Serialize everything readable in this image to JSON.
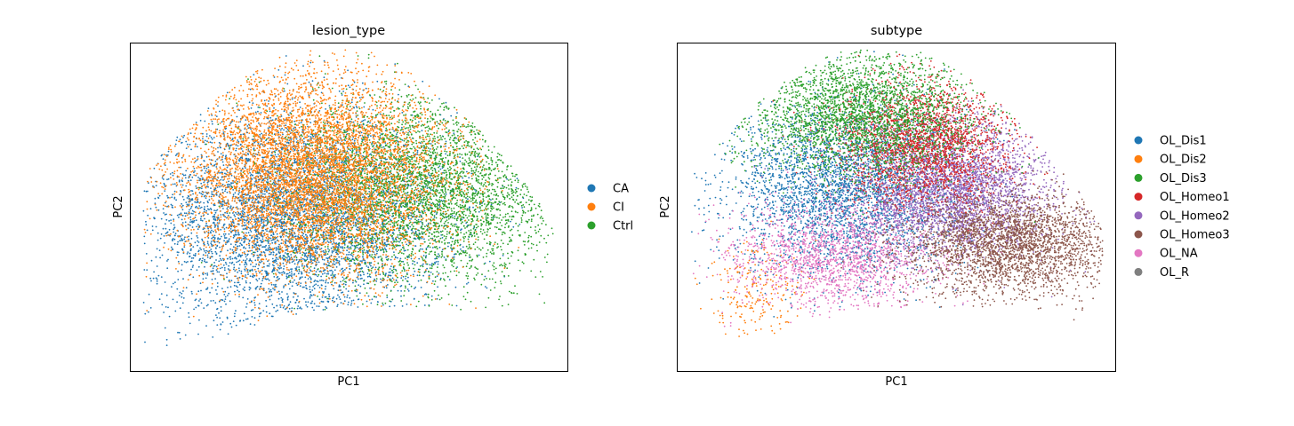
{
  "chart_data": [
    {
      "type": "scatter",
      "title": "lesion_type",
      "xlabel": "PC1",
      "ylabel": "PC2",
      "xticks": [],
      "yticks": [],
      "grid": false,
      "legend": {
        "placement": "right",
        "frameon": false
      },
      "series": [
        {
          "name": "CA",
          "color": "#1f77b4",
          "n_points": 5200,
          "center": [
            0.38,
            0.47
          ],
          "spread": [
            0.17,
            0.16
          ]
        },
        {
          "name": "CI",
          "color": "#ff7f0e",
          "n_points": 6500,
          "center": [
            0.42,
            0.6
          ],
          "spread": [
            0.15,
            0.15
          ]
        },
        {
          "name": "Ctrl",
          "color": "#2ca02c",
          "n_points": 3800,
          "center": [
            0.68,
            0.55
          ],
          "spread": [
            0.16,
            0.14
          ]
        }
      ],
      "draw_order": [
        "CA",
        "Ctrl",
        "CI"
      ]
    },
    {
      "type": "scatter",
      "title": "subtype",
      "xlabel": "PC1",
      "ylabel": "PC2",
      "xticks": [],
      "yticks": [],
      "grid": false,
      "legend": {
        "placement": "right",
        "frameon": false
      },
      "series": [
        {
          "name": "OL_Dis1",
          "color": "#1f77b4",
          "n_points": 3400,
          "center": [
            0.38,
            0.55
          ],
          "spread": [
            0.13,
            0.13
          ]
        },
        {
          "name": "OL_Dis2",
          "color": "#ff7f0e",
          "n_points": 220,
          "center": [
            0.18,
            0.25
          ],
          "spread": [
            0.06,
            0.07
          ]
        },
        {
          "name": "OL_Dis3",
          "color": "#2ca02c",
          "n_points": 2800,
          "center": [
            0.42,
            0.78
          ],
          "spread": [
            0.13,
            0.09
          ]
        },
        {
          "name": "OL_Homeo1",
          "color": "#d62728",
          "n_points": 2300,
          "center": [
            0.56,
            0.7
          ],
          "spread": [
            0.1,
            0.09
          ]
        },
        {
          "name": "OL_Homeo2",
          "color": "#9467bd",
          "n_points": 3400,
          "center": [
            0.63,
            0.55
          ],
          "spread": [
            0.11,
            0.1
          ]
        },
        {
          "name": "OL_Homeo3",
          "color": "#8c564b",
          "n_points": 2800,
          "center": [
            0.76,
            0.39
          ],
          "spread": [
            0.12,
            0.08
          ]
        },
        {
          "name": "OL_NA",
          "color": "#e377c2",
          "n_points": 1700,
          "center": [
            0.36,
            0.35
          ],
          "spread": [
            0.12,
            0.08
          ]
        },
        {
          "name": "OL_R",
          "color": "#7f7f7f",
          "n_points": 0,
          "center": [
            0.4,
            0.45
          ],
          "spread": [
            0.1,
            0.1
          ]
        }
      ],
      "draw_order": [
        "OL_Dis1",
        "OL_Dis2",
        "OL_NA",
        "OL_Homeo2",
        "OL_Homeo3",
        "OL_Homeo1",
        "OL_Dis3",
        "OL_R"
      ]
    }
  ]
}
